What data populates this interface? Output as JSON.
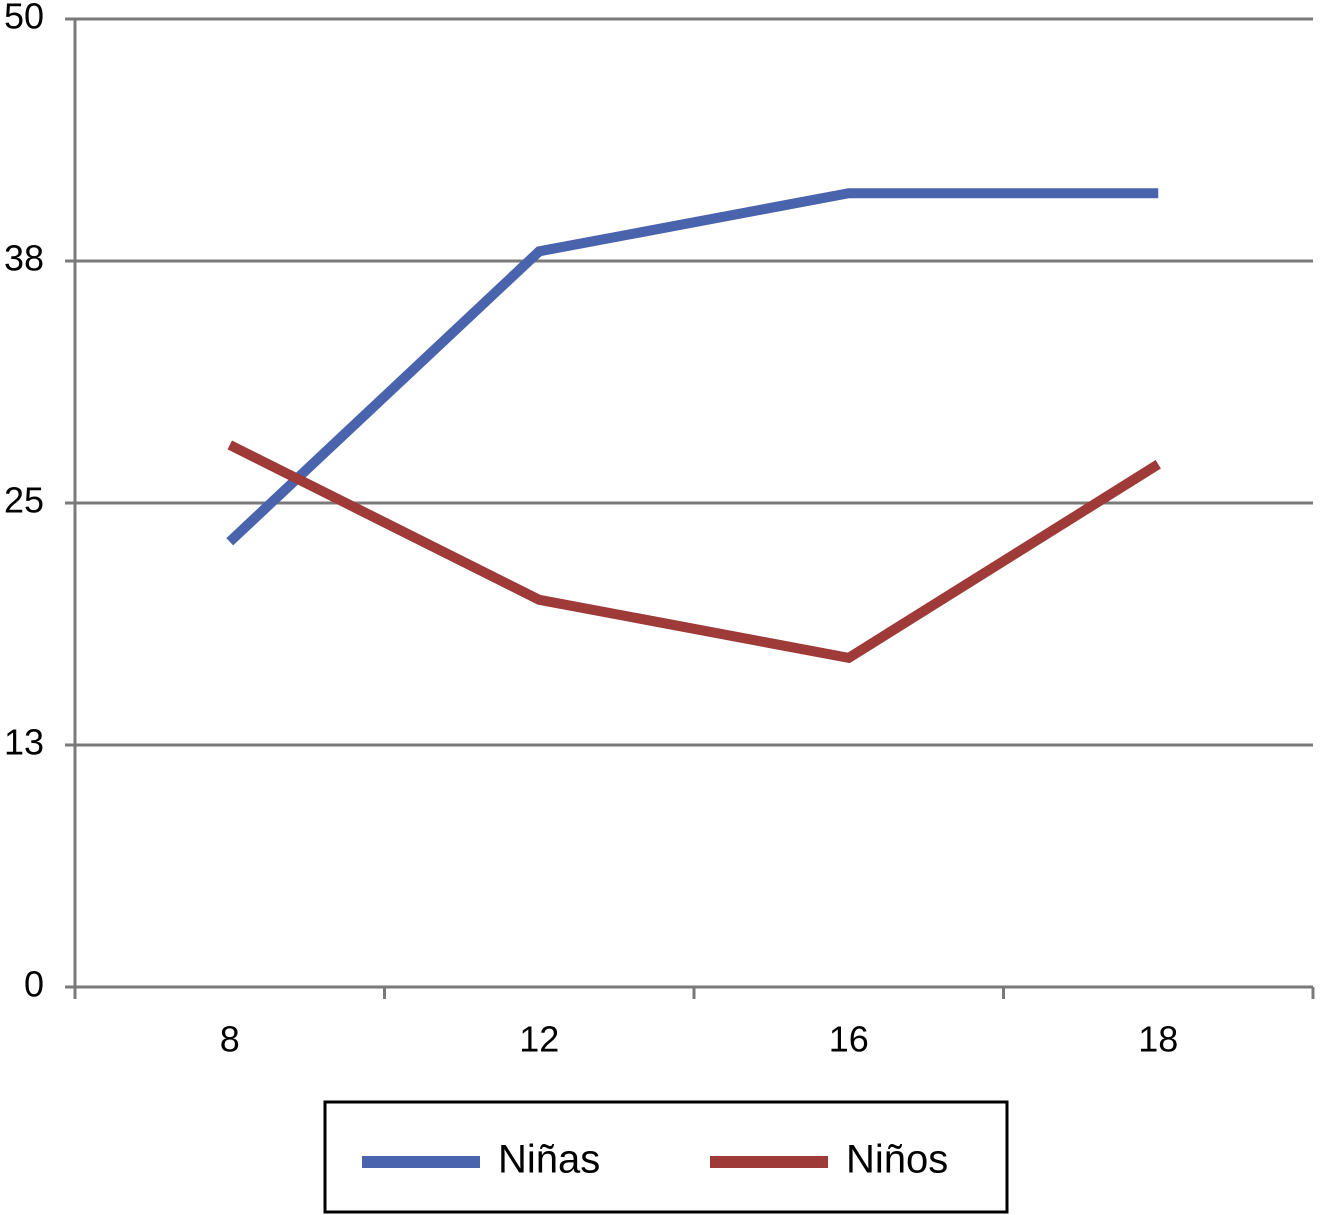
{
  "chart_data": {
    "type": "line",
    "categories": [
      "8",
      "12",
      "16",
      "18"
    ],
    "series": [
      {
        "name": "Niñas",
        "color": "#4a63ad",
        "values": [
          23,
          38,
          41,
          41
        ]
      },
      {
        "name": "Niños",
        "color": "#9e3a38",
        "values": [
          28,
          20,
          17,
          27
        ]
      }
    ],
    "ylim": [
      0,
      50
    ],
    "yticks": [
      0,
      {
        "value": 12.5,
        "label": "13"
      },
      25,
      {
        "value": 37.5,
        "label": "38"
      },
      50
    ],
    "grid": true,
    "legend": "bottom"
  }
}
